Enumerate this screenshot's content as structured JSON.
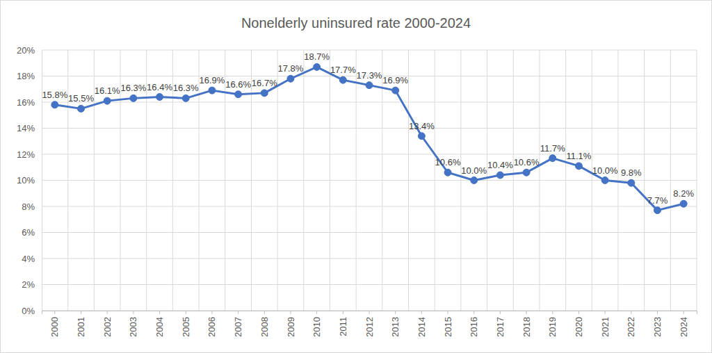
{
  "chart_data": {
    "type": "line",
    "title": "Nonelderly uninsured rate 2000-2024",
    "categories": [
      "2000",
      "2001",
      "2002",
      "2003",
      "2004",
      "2005",
      "2006",
      "2007",
      "2008",
      "2009",
      "2010",
      "2011",
      "2012",
      "2013",
      "2014",
      "2015",
      "2016",
      "2017",
      "2018",
      "2019",
      "2020",
      "2021",
      "2022",
      "2023",
      "2024"
    ],
    "values": [
      15.8,
      15.5,
      16.1,
      16.3,
      16.4,
      16.3,
      16.9,
      16.6,
      16.7,
      17.8,
      18.7,
      17.7,
      17.3,
      16.9,
      13.4,
      10.6,
      10.0,
      10.4,
      10.6,
      11.7,
      11.1,
      10.0,
      9.8,
      7.7,
      8.2
    ],
    "value_labels": [
      "15.8%",
      "15.5%",
      "16.1%",
      "16.3%",
      "16.4%",
      "16.3%",
      "16.9%",
      "16.6%",
      "16.7%",
      "17.8%",
      "18.7%",
      "17.7%",
      "17.3%",
      "16.9%",
      "13.4%",
      "10.6%",
      "10.0%",
      "10.4%",
      "10.6%",
      "11.7%",
      "11.1%",
      "10.0%",
      "9.8%",
      "7.7%",
      "8.2%"
    ],
    "color": "#4472c4",
    "ylim": [
      0,
      20
    ],
    "yticks": [
      {
        "value": 0,
        "label": "0%"
      },
      {
        "value": 2,
        "label": "2%"
      },
      {
        "value": 4,
        "label": "4%"
      },
      {
        "value": 6,
        "label": "6%"
      },
      {
        "value": 8,
        "label": "8%"
      },
      {
        "value": 10,
        "label": "10%"
      },
      {
        "value": 12,
        "label": "12%"
      },
      {
        "value": 14,
        "label": "14%"
      },
      {
        "value": 16,
        "label": "16%"
      },
      {
        "value": 18,
        "label": "18%"
      },
      {
        "value": 20,
        "label": "20%"
      }
    ],
    "grid": true,
    "data_labels": true,
    "marker": "circle"
  }
}
